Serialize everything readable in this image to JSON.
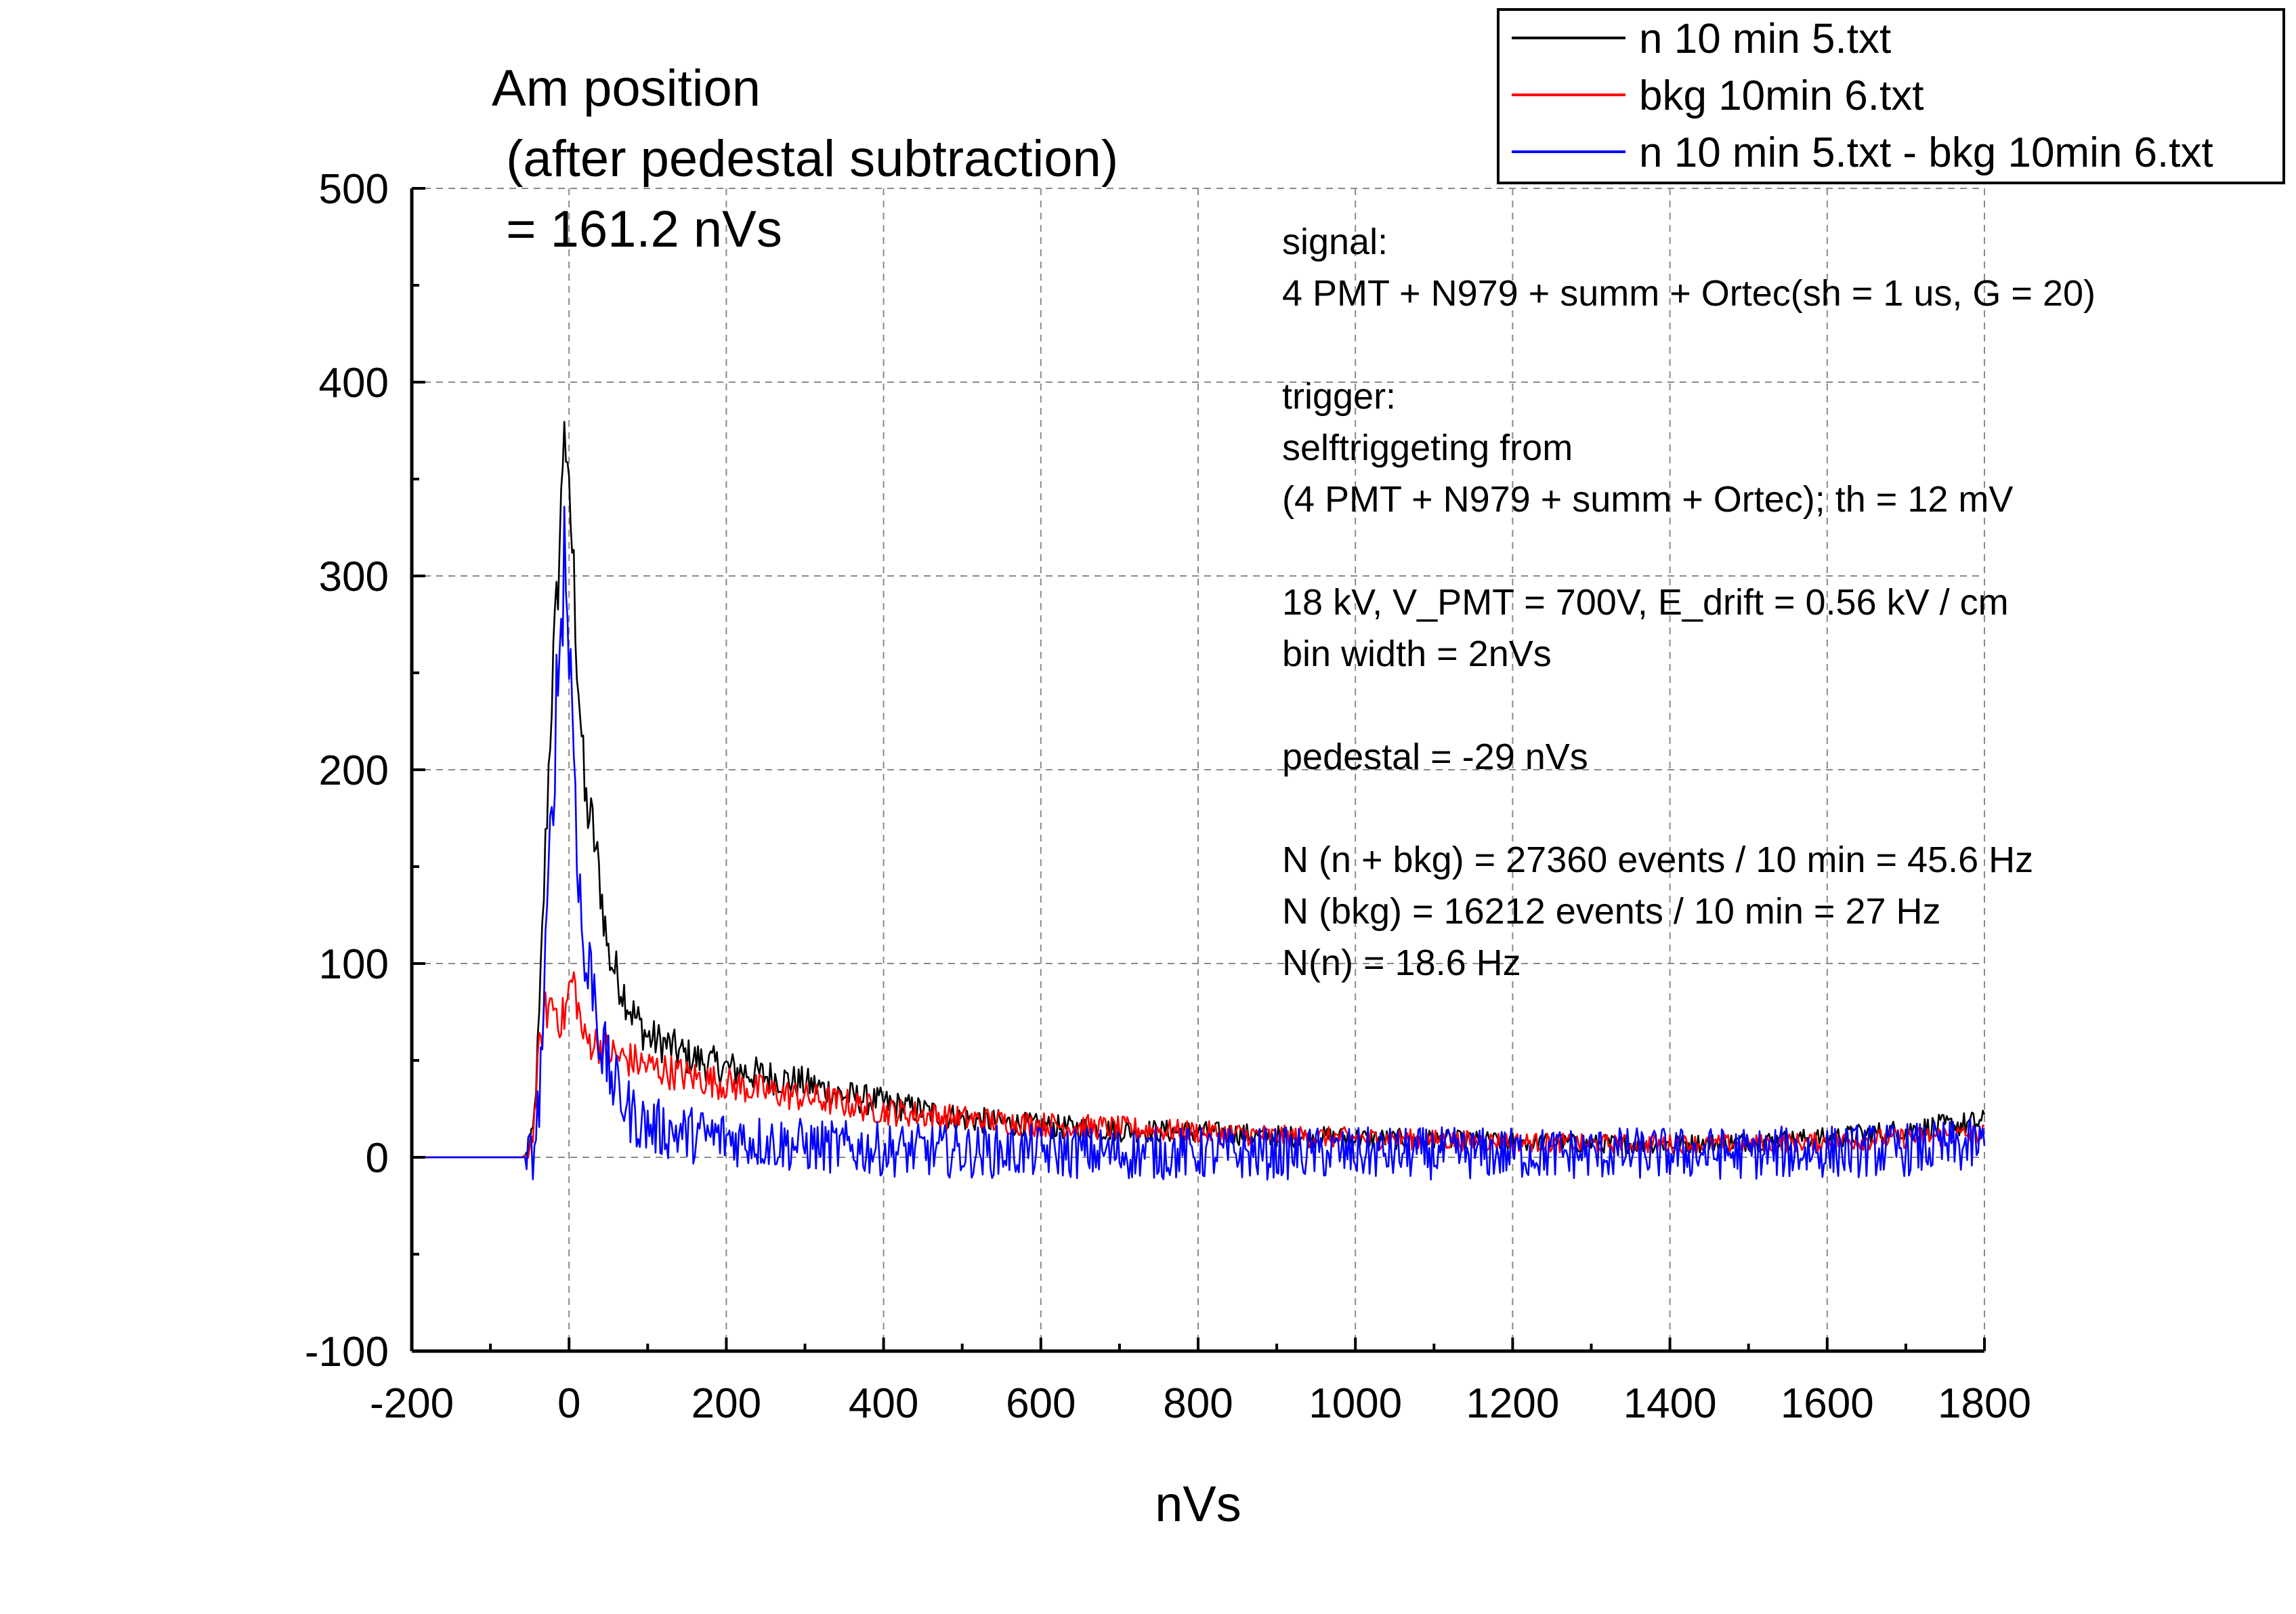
{
  "chart_data": {
    "type": "line",
    "title_lines": [
      "Am position",
      " (after pedestal subtraction)",
      " = 161.2 nVs"
    ],
    "xlabel": "nVs",
    "ylabel": "",
    "xlim": [
      -200,
      1800
    ],
    "ylim": [
      -100,
      500
    ],
    "x_ticks": [
      "-200",
      "0",
      "200",
      "400",
      "600",
      "800",
      "1000",
      "1200",
      "1400",
      "1600",
      "1800"
    ],
    "y_ticks": [
      "-100",
      "0",
      "100",
      "200",
      "300",
      "400",
      "500"
    ],
    "grid": true,
    "legend_position": "top-right",
    "series": [
      {
        "name": "n 10 min 5.txt",
        "color": "#000000",
        "x": [
          -200,
          -60,
          -52,
          -45,
          -38,
          -30,
          -22,
          -15,
          -10,
          -6,
          -2,
          2,
          6,
          10,
          15,
          20,
          30,
          40,
          50,
          60,
          80,
          100,
          125,
          150,
          200,
          250,
          300,
          350,
          400,
          450,
          500,
          600,
          700,
          800,
          900,
          1000,
          1100,
          1200,
          1300,
          1400,
          1500,
          1600,
          1700,
          1800
        ],
        "y": [
          0,
          0,
          2,
          15,
          70,
          160,
          240,
          290,
          335,
          390,
          340,
          330,
          300,
          260,
          225,
          185,
          170,
          140,
          105,
          95,
          75,
          62,
          58,
          52,
          46,
          42,
          38,
          32,
          28,
          24,
          20,
          16,
          14,
          13,
          11,
          10,
          9,
          8,
          7,
          7,
          8,
          10,
          14,
          18
        ]
      },
      {
        "name": "bkg 10min 6.txt",
        "color": "#ff0000",
        "x": [
          -200,
          -60,
          -52,
          -45,
          -38,
          -30,
          -22,
          -15,
          -10,
          -5,
          0,
          5,
          10,
          15,
          20,
          30,
          40,
          50,
          60,
          80,
          100,
          150,
          200,
          250,
          300,
          350,
          400,
          450,
          500,
          600,
          700,
          800,
          900,
          1000,
          1100,
          1200,
          1300,
          1400,
          1500,
          1600,
          1700,
          1800
        ],
        "y": [
          0,
          0,
          2,
          15,
          55,
          75,
          80,
          76,
          70,
          74,
          86,
          92,
          82,
          68,
          60,
          60,
          58,
          55,
          52,
          50,
          47,
          42,
          38,
          34,
          31,
          28,
          24,
          22,
          20,
          17,
          15,
          13,
          11,
          10,
          9,
          8,
          7,
          7,
          7,
          8,
          10,
          12
        ]
      },
      {
        "name": "n 10 min 5.txt - bkg 10min 6.txt",
        "color": "#0000ff",
        "x": [
          -200,
          -60,
          -52,
          -45,
          -38,
          -30,
          -22,
          -15,
          -10,
          -6,
          -2,
          2,
          6,
          10,
          15,
          20,
          30,
          40,
          50,
          60,
          80,
          100,
          150,
          200,
          250,
          300,
          350,
          400,
          500,
          600,
          700,
          800,
          900,
          1000,
          1100,
          1200,
          1300,
          1400,
          1500,
          1600,
          1700,
          1800
        ],
        "y": [
          0,
          0,
          0,
          2,
          30,
          95,
          180,
          245,
          275,
          320,
          280,
          250,
          215,
          170,
          125,
          95,
          95,
          60,
          45,
          35,
          22,
          16,
          12,
          10,
          8,
          6,
          5,
          4,
          3,
          3,
          2,
          2,
          2,
          2,
          2,
          2,
          2,
          2,
          2,
          3,
          4,
          6
        ]
      }
    ],
    "annotations": [
      "signal:",
      "4 PMT + N979 + summ + Ortec(sh =  1 us, G = 20)",
      "",
      "trigger:",
      "selftriggeting from",
      "(4 PMT + N979 + summ + Ortec); th = 12 mV",
      "",
      "18 kV, V_PMT = 700V, E_drift = 0.56 kV / cm",
      "bin width = 2nVs",
      "",
      "pedestal = -29 nVs",
      "",
      "N (n + bkg) = 27360  events / 10 min = 45.6 Hz",
      "N (bkg) = 16212 events / 10 min = 27 Hz",
      "N(n) = 18.6 Hz"
    ]
  }
}
